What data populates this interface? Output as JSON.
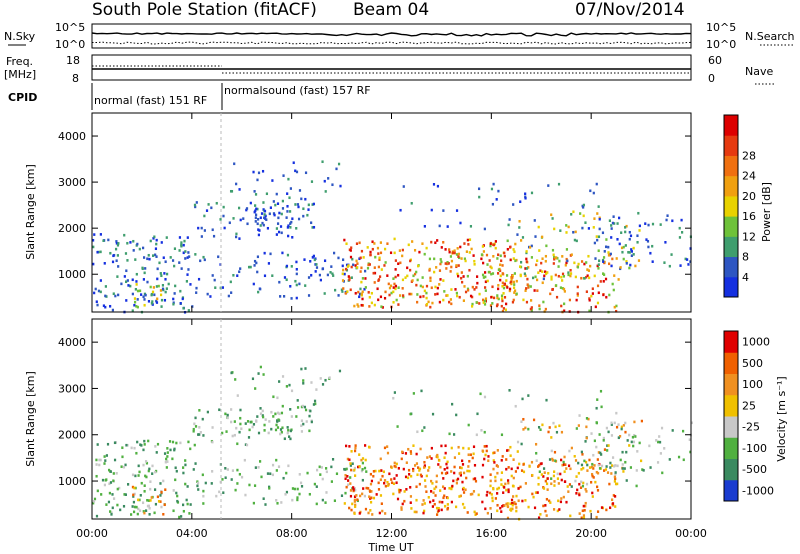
{
  "header": {
    "station": "South Pole Station (fitACF)",
    "beam": "Beam 04",
    "date": "07/Nov/2014"
  },
  "noise_panel": {
    "left_label": "N.Sky",
    "right_label": "N.Search",
    "left_ticks": [
      "10^5",
      "10^0"
    ],
    "right_ticks": [
      "10^5",
      "10^0"
    ]
  },
  "freq_panel": {
    "left_label_line1": "Freq.",
    "left_label_line2": "[MHz]",
    "right_label": "Nave",
    "left_ticks": [
      "18",
      "8"
    ],
    "right_ticks": [
      "60",
      "0"
    ]
  },
  "cpid": {
    "label": "CPID",
    "mode1": "normal (fast) 151 RF",
    "mode2": "normalsound (fast) 157 RF"
  },
  "time_axis": {
    "label": "Time UT",
    "ticks": [
      "00:00",
      "04:00",
      "08:00",
      "12:00",
      "16:00",
      "20:00",
      "00:00"
    ]
  },
  "chart_data": [
    {
      "type": "heatmap",
      "quantity": "Power",
      "ylabel": "Slant Range [km]",
      "yticks": [
        "1000",
        "2000",
        "3000",
        "4000"
      ],
      "ylim": [
        180,
        4500
      ],
      "xlim": [
        0,
        24
      ],
      "colorbar_label": "Power [dB]",
      "colorbar_ticks": [
        "4",
        "8",
        "12",
        "16",
        "20",
        "24",
        "28"
      ],
      "colors": [
        "#1530e0",
        "#2e56c2",
        "#3f9e6e",
        "#6ec23a",
        "#e8d200",
        "#f0a010",
        "#f07010",
        "#e63a10",
        "#dd0000"
      ]
    },
    {
      "type": "heatmap",
      "quantity": "Velocity",
      "ylabel": "Slant Range [km]",
      "yticks": [
        "1000",
        "2000",
        "3000",
        "4000"
      ],
      "ylim": [
        180,
        4500
      ],
      "xlim": [
        0,
        24
      ],
      "colorbar_label": "Velocity [m s⁻¹]",
      "colorbar_ticks": [
        "1000",
        "500",
        "100",
        "25",
        "-25",
        "-100",
        "-500",
        "-1000"
      ],
      "colors": [
        "#1a3cd0",
        "#3a8a60",
        "#50b040",
        "#c8c8c8",
        "#f0c000",
        "#f09020",
        "#f06000",
        "#e00000"
      ]
    }
  ]
}
